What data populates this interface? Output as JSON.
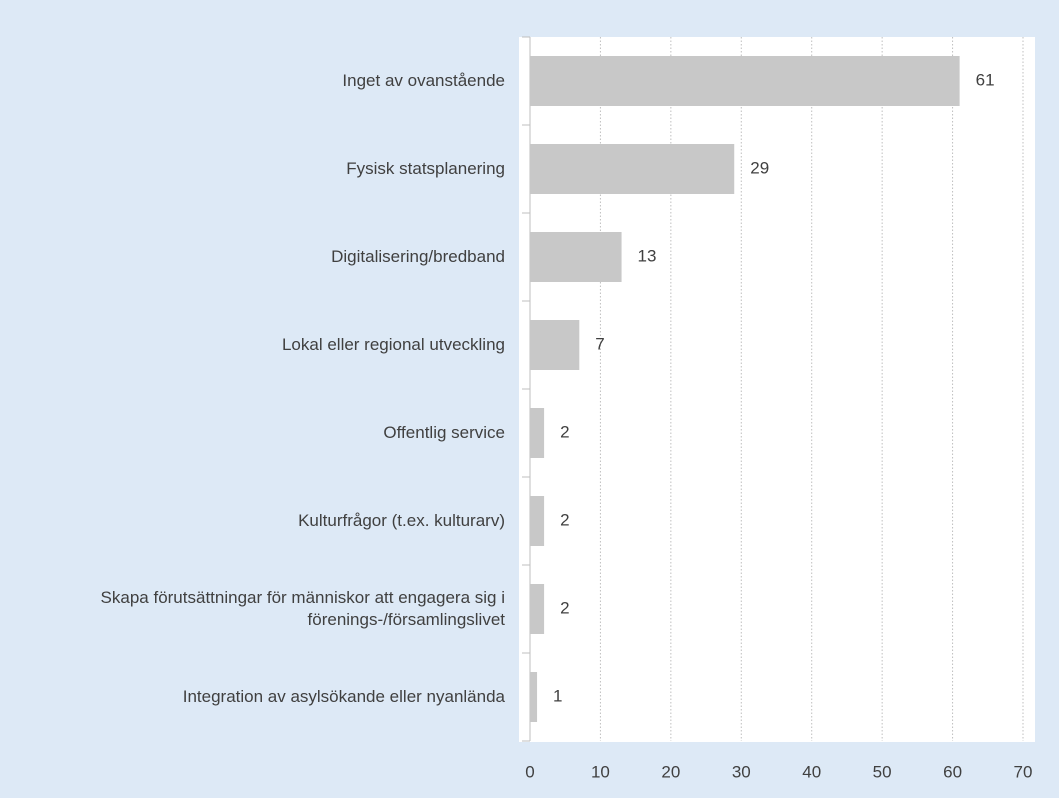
{
  "chart_data": {
    "type": "bar",
    "orientation": "horizontal",
    "categories": [
      "Inget av ovanstående",
      "Fysisk statsplanering",
      "Digitalisering/bredband",
      "Lokal eller regional utveckling",
      "Offentlig service",
      "Kulturfrågor (t.ex. kulturarv)",
      "Skapa förutsättningar för människor att engagera sig i förenings-/församlingslivet",
      "Integration av asylsökande eller nyanlända"
    ],
    "values": [
      61,
      29,
      13,
      7,
      2,
      2,
      2,
      1
    ],
    "color": "#c8c8c8",
    "xlim": [
      0,
      70
    ],
    "xticks": [
      0,
      10,
      20,
      30,
      40,
      50,
      60,
      70
    ],
    "grid": true
  }
}
